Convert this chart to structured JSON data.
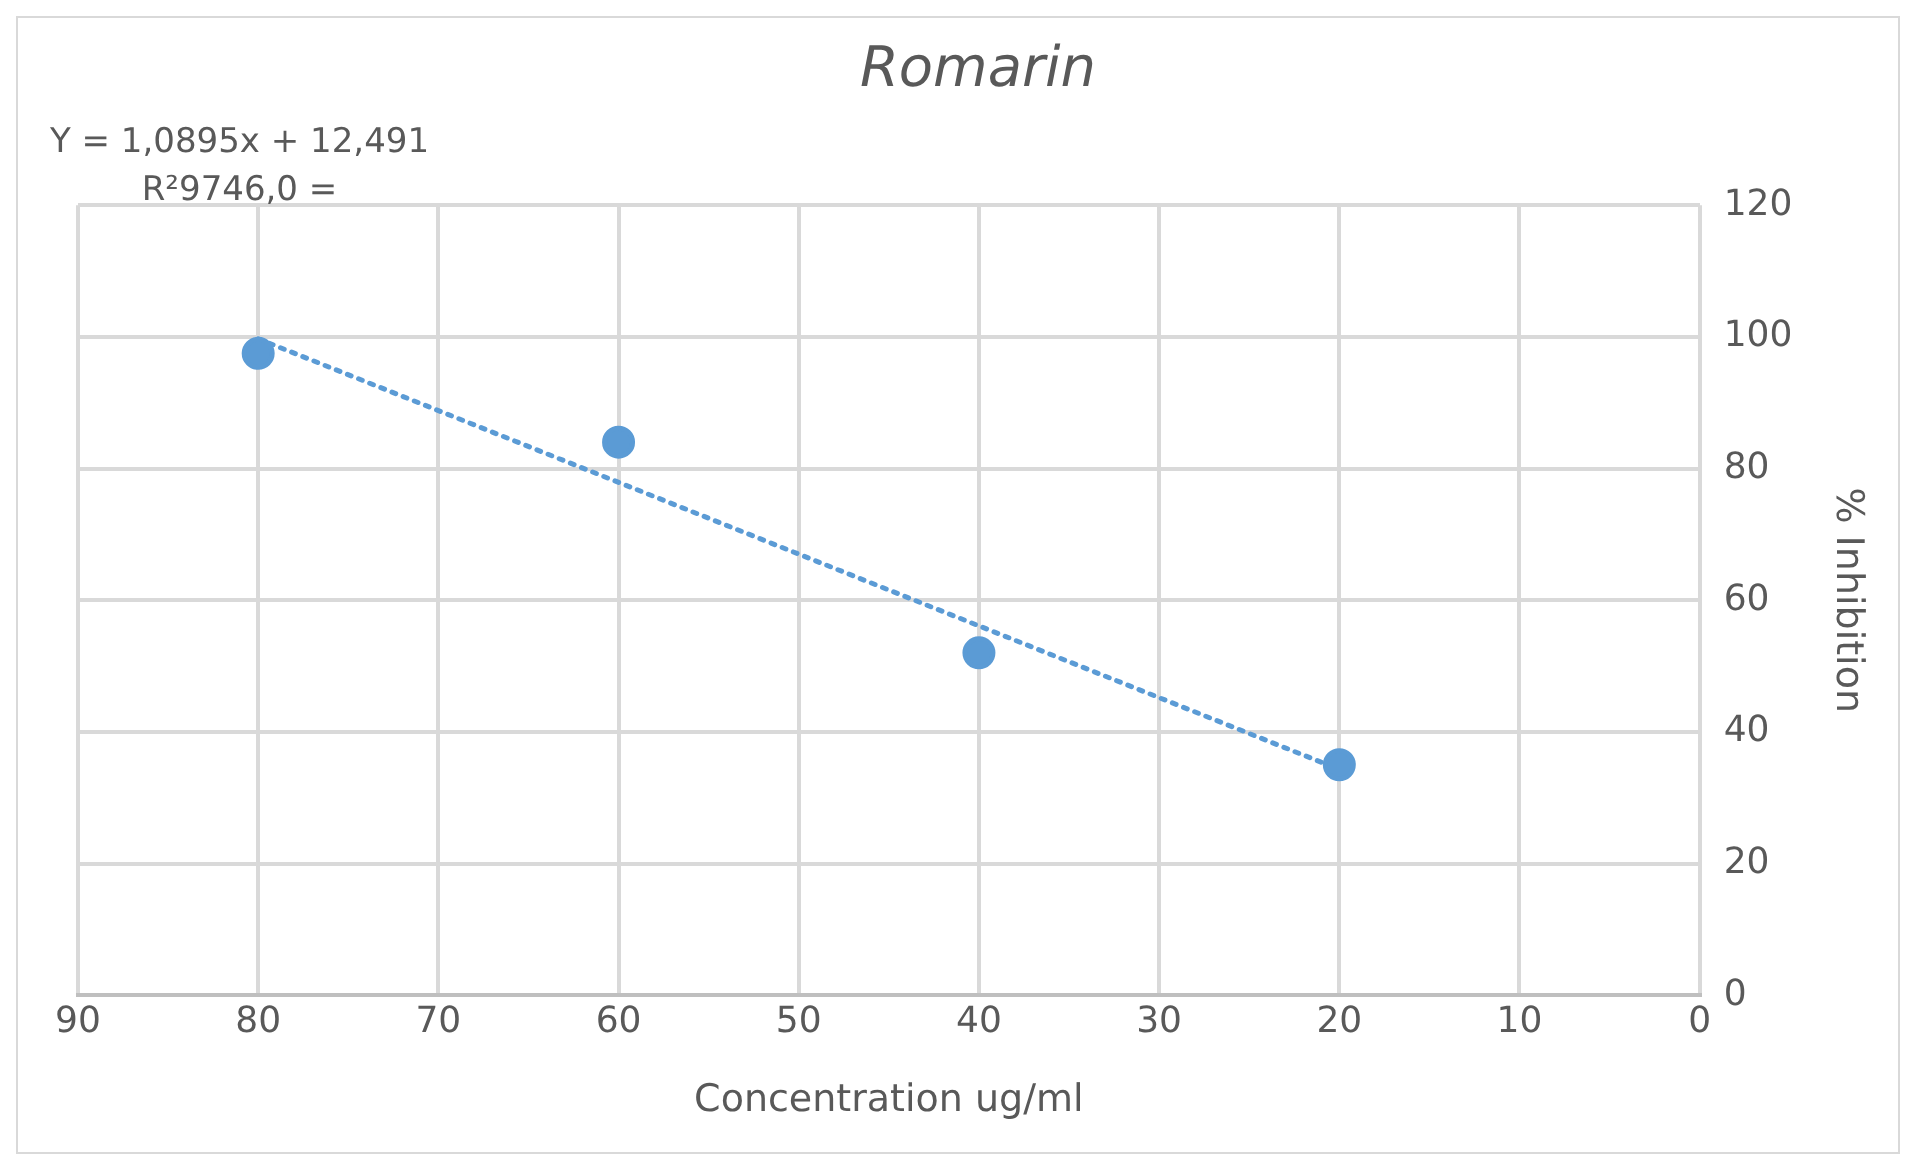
{
  "chart_data": {
    "type": "scatter",
    "title": "Romarin",
    "xlabel": "Concentration ug/ml",
    "ylabel": "% Inhibition",
    "annotations": [
      "Y = 1,0895x + 12,491",
      "R²9746,0 ="
    ],
    "series": [
      {
        "type": "scatter",
        "color": "#5b9bd5",
        "x": [
          80,
          60,
          40,
          20
        ],
        "values": [
          97.5,
          84,
          52,
          35
        ],
        "marker": "circle"
      },
      {
        "type": "line",
        "color": "#5b9bd5",
        "x": [
          80,
          20
        ],
        "values": [
          99.7,
          34.3
        ],
        "line_style": "dotted",
        "marker": "none"
      }
    ],
    "xlim": [
      90,
      0
    ],
    "xticks": [
      90,
      80,
      70,
      60,
      50,
      40,
      30,
      20,
      10,
      0
    ],
    "ylim": [
      0,
      120
    ],
    "yticks": [
      0,
      20,
      40,
      60,
      80,
      100,
      120
    ],
    "grid": true,
    "legend": false
  }
}
